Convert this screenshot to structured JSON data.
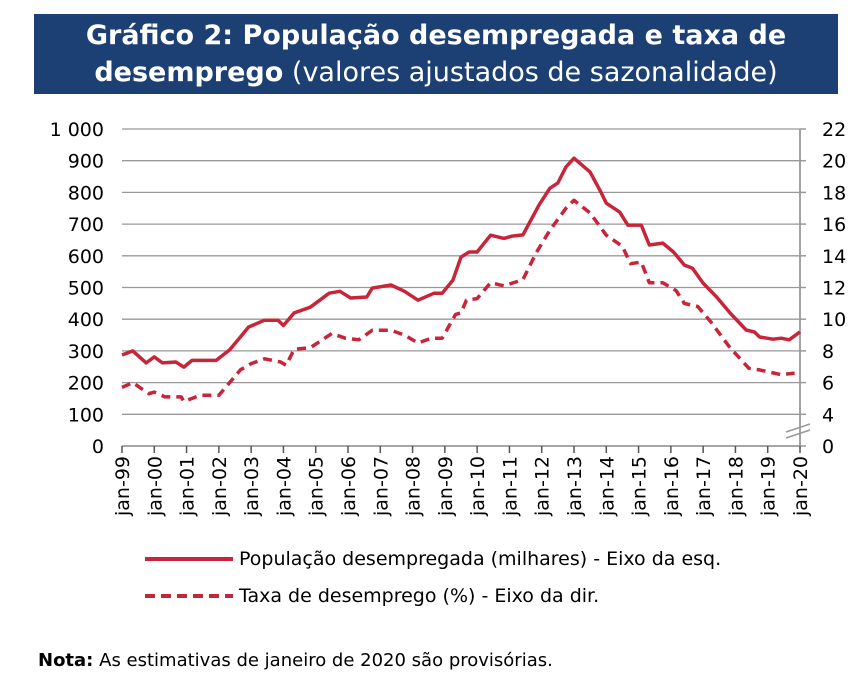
{
  "header": {
    "title_bold_1": "Gráfico 2: População desempregada e taxa de",
    "title_bold_2": "desemprego",
    "title_normal": "(valores ajustados de sazonalidade)"
  },
  "colors": {
    "header_bg": "#1c3f74",
    "series": "#c8243a",
    "grid": "#999999"
  },
  "chart_data": {
    "type": "line",
    "left_axis": {
      "ticks": [
        "0",
        "100",
        "200",
        "300",
        "400",
        "500",
        "600",
        "700",
        "800",
        "900",
        "1 000"
      ],
      "range": [
        0,
        1000
      ]
    },
    "right_axis": {
      "ticks": [
        "0",
        "4",
        "6",
        "8",
        "10",
        "12",
        "14",
        "16",
        "18",
        "20",
        "22"
      ],
      "range": [
        0,
        22
      ],
      "axis_break": "between 0 and 4"
    },
    "x_ticks": [
      "jan-99",
      "jan-00",
      "jan-01",
      "jan-02",
      "jan-03",
      "jan-04",
      "jan-05",
      "jan-06",
      "jan-07",
      "jan-08",
      "jan-09",
      "jan-10",
      "jan-11",
      "jan-12",
      "jan-13",
      "jan-14",
      "jan-15",
      "jan-16",
      "jan-17",
      "jan-18",
      "jan-19",
      "jan-20"
    ],
    "grid": true,
    "legend_position": "bottom",
    "series": [
      {
        "name": "População desempregada (milhares) - Eixo da esq.",
        "axis": "left",
        "style": "solid",
        "points": [
          [
            "1999-01",
            287
          ],
          [
            "1999-05",
            300
          ],
          [
            "1999-10",
            262
          ],
          [
            "2000-01",
            281
          ],
          [
            "2000-04",
            262
          ],
          [
            "2000-09",
            265
          ],
          [
            "2000-12",
            249
          ],
          [
            "2001-03",
            270
          ],
          [
            "2001-12",
            270
          ],
          [
            "2002-05",
            303
          ],
          [
            "2002-09",
            344
          ],
          [
            "2002-12",
            375
          ],
          [
            "2003-06",
            397
          ],
          [
            "2003-11",
            397
          ],
          [
            "2004-01",
            380
          ],
          [
            "2004-05",
            420
          ],
          [
            "2004-11",
            438
          ],
          [
            "2005-06",
            482
          ],
          [
            "2005-10",
            488
          ],
          [
            "2006-02",
            467
          ],
          [
            "2006-08",
            470
          ],
          [
            "2006-10",
            498
          ],
          [
            "2007-05",
            508
          ],
          [
            "2007-10",
            488
          ],
          [
            "2008-03",
            460
          ],
          [
            "2008-09",
            482
          ],
          [
            "2008-12",
            482
          ],
          [
            "2009-04",
            523
          ],
          [
            "2009-07",
            596
          ],
          [
            "2009-10",
            612
          ],
          [
            "2010-01",
            612
          ],
          [
            "2010-06",
            665
          ],
          [
            "2010-11",
            655
          ],
          [
            "2011-02",
            662
          ],
          [
            "2011-06",
            666
          ],
          [
            "2011-12",
            760
          ],
          [
            "2012-04",
            813
          ],
          [
            "2012-07",
            830
          ],
          [
            "2012-10",
            880
          ],
          [
            "2013-01",
            908
          ],
          [
            "2013-07",
            864
          ],
          [
            "2013-11",
            801
          ],
          [
            "2014-01",
            766
          ],
          [
            "2014-06",
            738
          ],
          [
            "2014-09",
            697
          ],
          [
            "2015-02",
            697
          ],
          [
            "2015-05",
            634
          ],
          [
            "2015-10",
            640
          ],
          [
            "2016-02",
            612
          ],
          [
            "2016-06",
            571
          ],
          [
            "2016-09",
            561
          ],
          [
            "2017-01",
            514
          ],
          [
            "2017-06",
            470
          ],
          [
            "2017-11",
            420
          ],
          [
            "2018-05",
            366
          ],
          [
            "2018-08",
            360
          ],
          [
            "2018-10",
            344
          ],
          [
            "2019-03",
            337
          ],
          [
            "2019-06",
            340
          ],
          [
            "2019-09",
            335
          ],
          [
            "2020-01",
            360
          ]
        ]
      },
      {
        "name": "Taxa de desemprego (%) - Eixo da dir.",
        "axis": "right",
        "style": "dashed",
        "points": [
          [
            "1999-01",
            5.7
          ],
          [
            "1999-05",
            6.0
          ],
          [
            "1999-11",
            5.3
          ],
          [
            "2000-01",
            5.4
          ],
          [
            "2000-05",
            5.1
          ],
          [
            "2000-11",
            5.1
          ],
          [
            "2000-12",
            4.8
          ],
          [
            "2001-06",
            5.2
          ],
          [
            "2002-01",
            5.2
          ],
          [
            "2002-05",
            6.0
          ],
          [
            "2002-09",
            6.8
          ],
          [
            "2003-01",
            7.2
          ],
          [
            "2003-06",
            7.5
          ],
          [
            "2003-12",
            7.3
          ],
          [
            "2004-02",
            7.1
          ],
          [
            "2004-05",
            8.1
          ],
          [
            "2004-11",
            8.2
          ],
          [
            "2005-07",
            9.1
          ],
          [
            "2005-12",
            8.8
          ],
          [
            "2006-05",
            8.7
          ],
          [
            "2006-10",
            9.3
          ],
          [
            "2007-05",
            9.3
          ],
          [
            "2007-10",
            9.0
          ],
          [
            "2008-03",
            8.5
          ],
          [
            "2008-08",
            8.8
          ],
          [
            "2008-12",
            8.8
          ],
          [
            "2009-05",
            10.3
          ],
          [
            "2009-07",
            10.4
          ],
          [
            "2009-09",
            11.2
          ],
          [
            "2010-01",
            11.3
          ],
          [
            "2010-06",
            12.3
          ],
          [
            "2010-11",
            12.1
          ],
          [
            "2011-06",
            12.5
          ],
          [
            "2011-11",
            14.2
          ],
          [
            "2012-04",
            15.6
          ],
          [
            "2012-10",
            17.0
          ],
          [
            "2013-01",
            17.5
          ],
          [
            "2013-07",
            16.7
          ],
          [
            "2014-01",
            15.3
          ],
          [
            "2014-07",
            14.6
          ],
          [
            "2014-10",
            13.5
          ],
          [
            "2015-02",
            13.6
          ],
          [
            "2015-05",
            12.3
          ],
          [
            "2015-10",
            12.3
          ],
          [
            "2016-03",
            11.8
          ],
          [
            "2016-06",
            11.0
          ],
          [
            "2016-11",
            10.8
          ],
          [
            "2017-04",
            9.8
          ],
          [
            "2017-11",
            8.2
          ],
          [
            "2018-06",
            6.9
          ],
          [
            "2018-10",
            6.8
          ],
          [
            "2019-06",
            6.5
          ],
          [
            "2019-11",
            6.6
          ]
        ]
      }
    ]
  },
  "note": {
    "label": "Nota:",
    "text": "As estimativas de janeiro de 2020 são provisórias."
  }
}
